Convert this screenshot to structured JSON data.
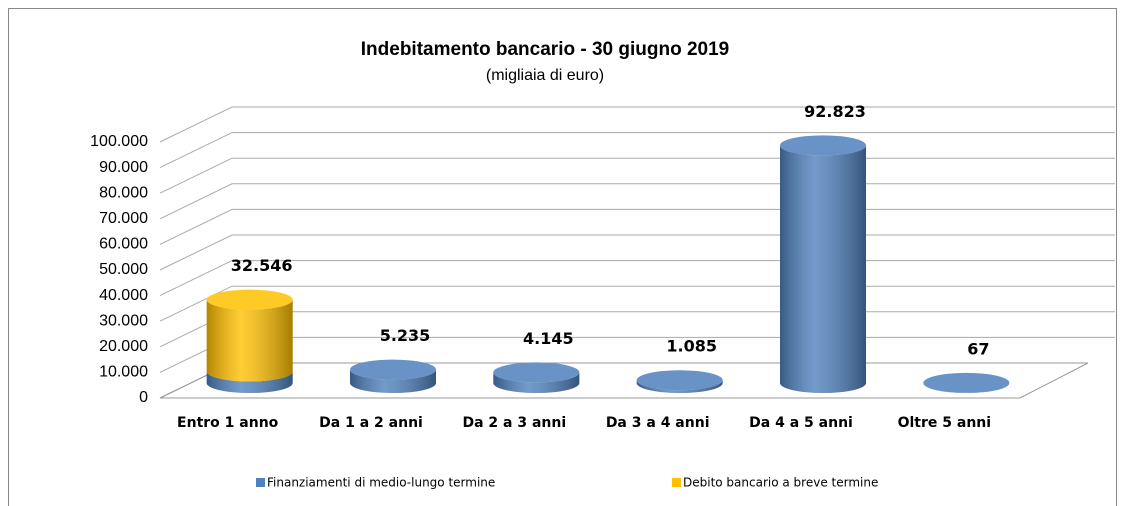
{
  "chart_data": {
    "type": "cylinder3d",
    "title": "Indebitamento bancario - 30 giugno 2019",
    "subtitle": "(migliaia di euro)",
    "categories": [
      "Entro 1 anno",
      "Da 1 a 2 anni",
      "Da 2 a 3 anni",
      "Da 3 a 4 anni",
      "Da 4 a 5 anni",
      "Oltre 5 anni"
    ],
    "series": [
      {
        "name": "Finanziamenti di medio-lungo termine",
        "color": "#4f81bd",
        "values": [
          4500,
          5235,
          4145,
          1085,
          92823,
          67
        ]
      },
      {
        "name": "Debito bancario a breve termine",
        "color": "#ffc000",
        "values": [
          28046,
          null,
          null,
          null,
          null,
          null
        ]
      }
    ],
    "totals": [
      32546,
      5235,
      4145,
      1085,
      92823,
      67
    ],
    "total_labels": [
      "32.546",
      "5.235",
      "4.145",
      "1.085",
      "92.823",
      "67"
    ],
    "ylim": [
      0,
      100000
    ],
    "yticks": [
      0,
      {
        "value": 10000,
        "label": "10.000"
      },
      {
        "value": 20000,
        "label": "20.000"
      },
      {
        "value": 30000,
        "label": "30.000"
      },
      {
        "value": 40000,
        "label": "40.000"
      },
      {
        "value": 50000,
        "label": "50.000"
      },
      {
        "value": 60000,
        "label": "60.000"
      },
      {
        "value": 70000,
        "label": "70.000"
      },
      {
        "value": 80000,
        "label": "80.000"
      },
      {
        "value": 90000,
        "label": "90.000"
      },
      {
        "value": 100000,
        "label": "100.000"
      }
    ],
    "grid": true,
    "legend": "bottom"
  }
}
